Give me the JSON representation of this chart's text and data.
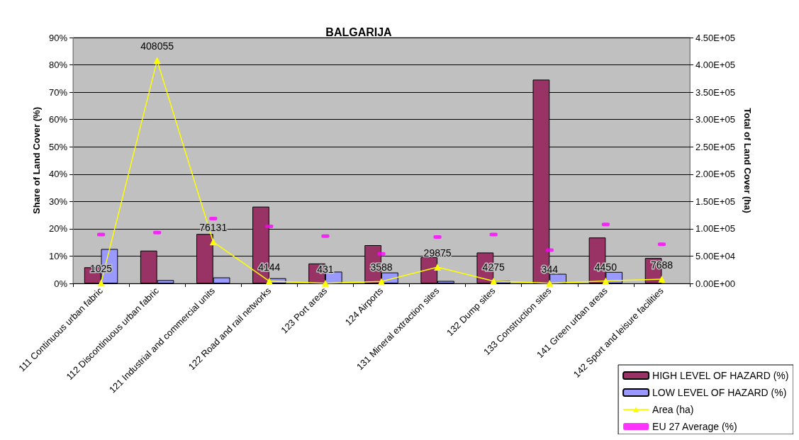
{
  "chart_data": {
    "type": "bar",
    "title": "BALGARIJA",
    "ylabel": "Share of Land Cover (%)",
    "y2label": "Total of Land Cover (ha)",
    "categories": [
      "111 Continuous urban fabric",
      "112 Discontinuous urban fabric",
      "121 Industrial and commercial units",
      "122 Road and rail networks",
      "123 Port areas",
      "124 Airports",
      "131 Mineral extraction sites",
      "132 Dump sites",
      "133 Construction sites",
      "141 Green urban areas",
      "142 Sport and leisure facilities"
    ],
    "series": [
      {
        "name": "HIGH LEVEL OF HAZARD (%)",
        "color": "#993366",
        "values": [
          5.9,
          12.0,
          18.1,
          28.1,
          7.3,
          14.0,
          9.6,
          11.3,
          74.6,
          16.8,
          9.3
        ]
      },
      {
        "name": "LOW LEVEL OF HAZARD (%)",
        "color": "#9999ff",
        "values": [
          12.6,
          1.2,
          2.2,
          1.9,
          4.3,
          4.0,
          0.9,
          0.9,
          3.5,
          4.2,
          null
        ]
      },
      {
        "name": "Area (ha)",
        "type": "line",
        "axis": "y2",
        "color": "#ffff00",
        "marker": "triangle",
        "values": [
          1025,
          408055,
          76131,
          4144,
          431,
          3588,
          29875,
          4275,
          344,
          4450,
          7688
        ],
        "value_labels": [
          "1025",
          "408055",
          "76131",
          "4144",
          "431",
          "3588",
          "29875",
          "4275",
          "344",
          "4450",
          "7688"
        ]
      },
      {
        "name": "EU 27 Average (%)",
        "type": "scatter",
        "color": "#ff00ff",
        "values": [
          17.9,
          18.6,
          23.7,
          20.9,
          17.3,
          10.8,
          17.0,
          17.9,
          12.2,
          21.6,
          14.3
        ]
      }
    ],
    "ylim": [
      0,
      90
    ],
    "yticks": [
      {
        "value": 0,
        "label": "0%"
      },
      {
        "value": 10,
        "label": "10%"
      },
      {
        "value": 20,
        "label": "20%"
      },
      {
        "value": 30,
        "label": "30%"
      },
      {
        "value": 40,
        "label": "40%"
      },
      {
        "value": 50,
        "label": "50%"
      },
      {
        "value": 60,
        "label": "60%"
      },
      {
        "value": 70,
        "label": "70%"
      },
      {
        "value": 80,
        "label": "80%"
      },
      {
        "value": 90,
        "label": "90%"
      }
    ],
    "y2lim": [
      0,
      450000
    ],
    "y2ticks": [
      {
        "value": 0,
        "label": "0.00E+00"
      },
      {
        "value": 50000,
        "label": "5.00E+04"
      },
      {
        "value": 100000,
        "label": "1.00E+05"
      },
      {
        "value": 150000,
        "label": "1.50E+05"
      },
      {
        "value": 200000,
        "label": "2.00E+05"
      },
      {
        "value": 250000,
        "label": "2.50E+05"
      },
      {
        "value": 300000,
        "label": "3.00E+05"
      },
      {
        "value": 350000,
        "label": "3.50E+05"
      },
      {
        "value": 400000,
        "label": "4.00E+05"
      },
      {
        "value": 450000,
        "label": "4.50E+05"
      }
    ],
    "grid": "y",
    "legend": "bottom right"
  }
}
